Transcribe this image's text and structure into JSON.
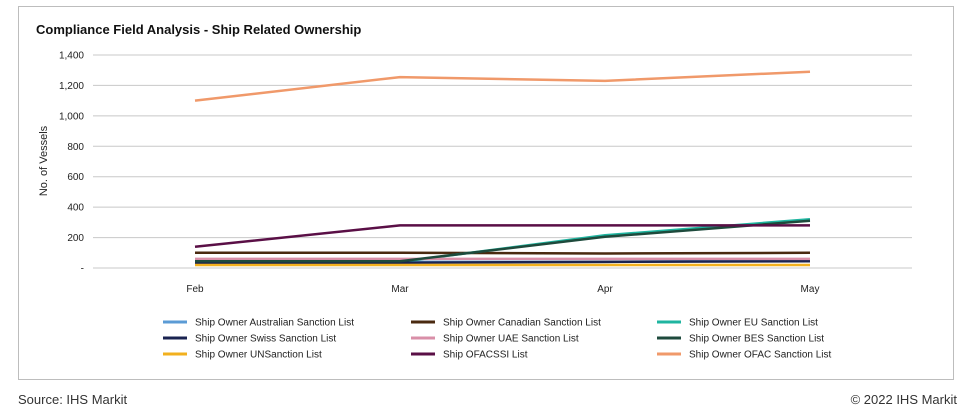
{
  "title": "Compliance Field Analysis  - Ship Related Ownership",
  "footer": {
    "source": "Source: IHS Markit",
    "copyright": "© 2022 IHS Markit"
  },
  "chart_data": {
    "type": "line",
    "title": "Compliance Field Analysis  - Ship Related Ownership",
    "xlabel": "",
    "ylabel": "No. of Vessels",
    "categories": [
      "Feb",
      "Mar",
      "Apr",
      "May"
    ],
    "ylim": [
      0,
      1400
    ],
    "yticks": [
      0,
      200,
      400,
      600,
      800,
      1000,
      1200,
      1400
    ],
    "ytick_labels": [
      "-",
      "200",
      "400",
      "600",
      "800",
      "1,000",
      "1,200",
      "1,400"
    ],
    "grid": true,
    "legend_position": "bottom",
    "series": [
      {
        "name": "Ship Owner Australian Sanction List",
        "color": "#5b9bd5",
        "values": [
          40,
          40,
          40,
          50
        ]
      },
      {
        "name": "Ship Owner Canadian Sanction List",
        "color": "#4a2a10",
        "values": [
          100,
          100,
          95,
          100
        ]
      },
      {
        "name": "Ship Owner EU Sanction List",
        "color": "#1fb5a0",
        "values": [
          40,
          40,
          215,
          320
        ]
      },
      {
        "name": "Ship Owner Swiss Sanction List",
        "color": "#1a2350",
        "values": [
          35,
          35,
          40,
          45
        ]
      },
      {
        "name": "Ship Owner UAE Sanction List",
        "color": "#d98fa8",
        "values": [
          60,
          60,
          60,
          60
        ]
      },
      {
        "name": "Ship Owner BES Sanction List",
        "color": "#1e4a3c",
        "values": [
          45,
          45,
          205,
          310
        ]
      },
      {
        "name": "Ship Owner UNSanction List",
        "color": "#f2b01e",
        "values": [
          20,
          20,
          20,
          20
        ]
      },
      {
        "name": "Ship OFACSSI List",
        "color": "#5a0f46",
        "values": [
          140,
          280,
          280,
          280
        ]
      },
      {
        "name": "Ship Owner OFAC Sanction List",
        "color": "#f0996a",
        "values": [
          1100,
          1255,
          1230,
          1290
        ]
      }
    ]
  }
}
